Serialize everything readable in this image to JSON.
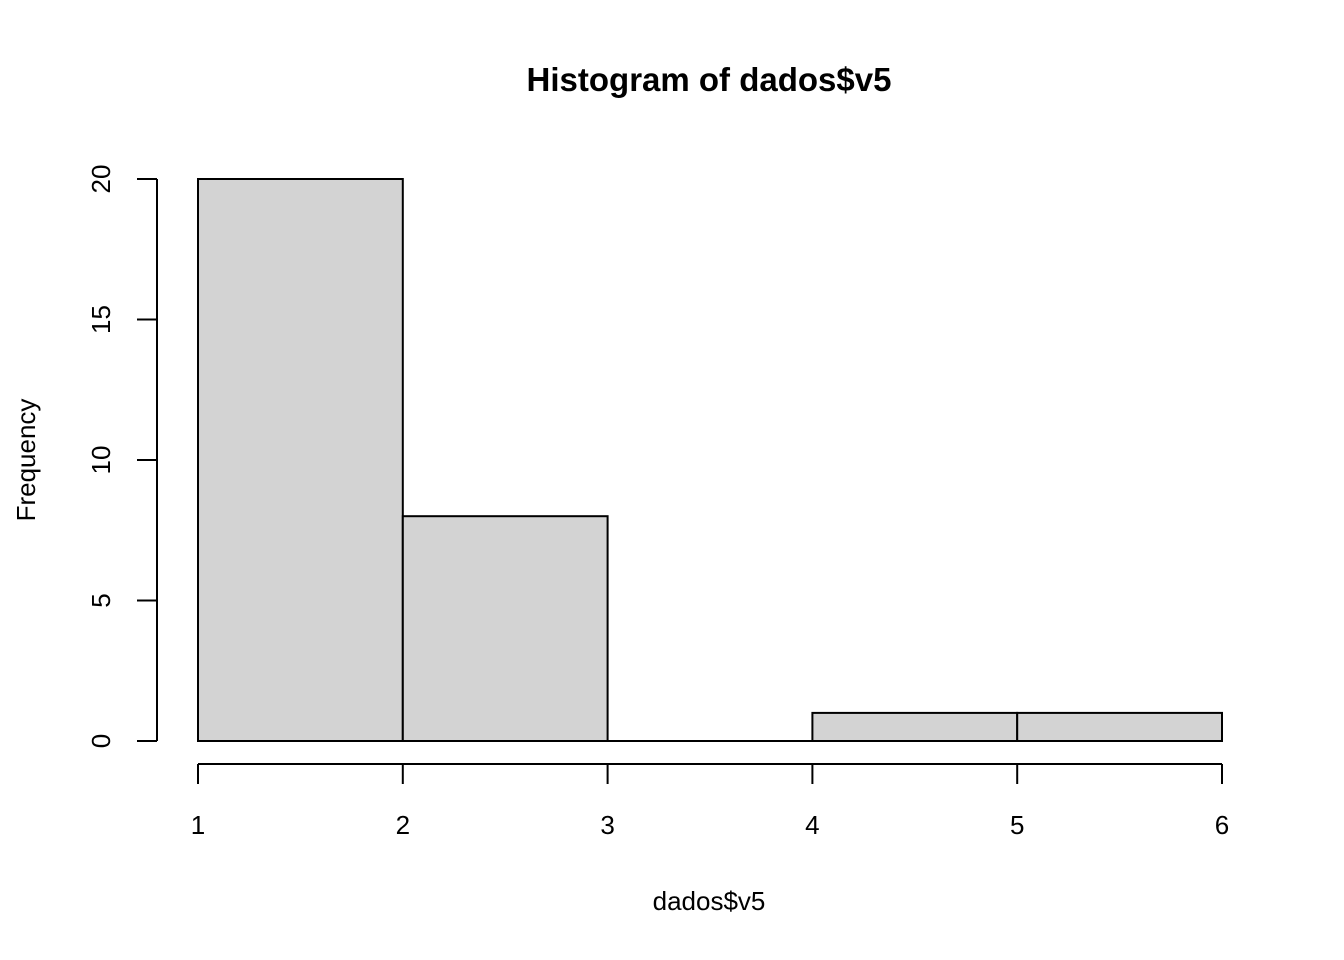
{
  "chart_data": {
    "type": "bar",
    "title": "Histogram of dados$v5",
    "xlabel": "dados$v5",
    "ylabel": "Frequency",
    "bins": [
      {
        "from": 1,
        "to": 2,
        "count": 20
      },
      {
        "from": 2,
        "to": 3,
        "count": 8
      },
      {
        "from": 3,
        "to": 4,
        "count": 0
      },
      {
        "from": 4,
        "to": 5,
        "count": 1
      },
      {
        "from": 5,
        "to": 6,
        "count": 1
      }
    ],
    "xlim": [
      1,
      6
    ],
    "ylim": [
      0,
      20
    ],
    "xticks": [
      "1",
      "2",
      "3",
      "4",
      "5",
      "6"
    ],
    "yticks": [
      "0",
      "5",
      "10",
      "15",
      "20"
    ],
    "bar_color": "#d3d3d3",
    "grid": false,
    "legend": "none"
  }
}
